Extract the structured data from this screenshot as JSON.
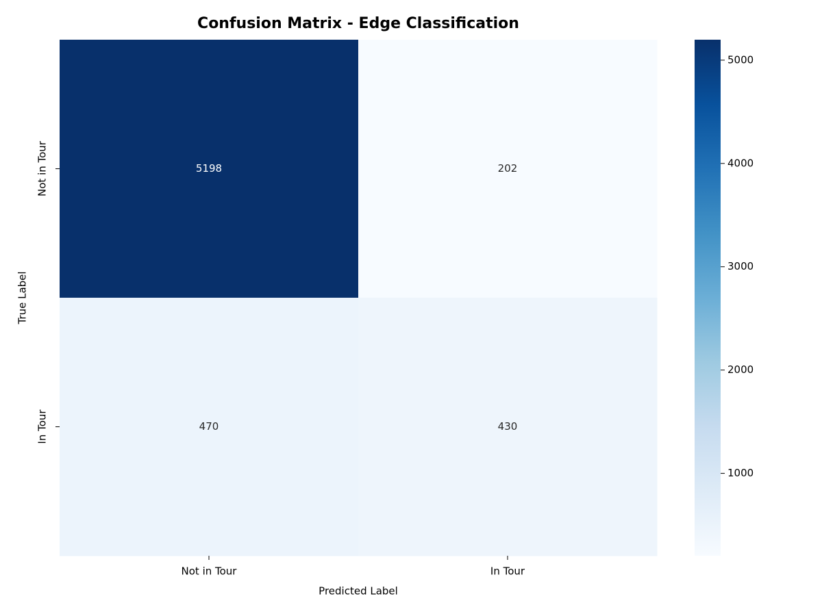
{
  "chart_data": {
    "type": "heatmap",
    "title": "Confusion Matrix - Edge Classification",
    "x_categories": [
      "Not in Tour",
      "In Tour"
    ],
    "y_categories": [
      "Not in Tour",
      "In Tour"
    ],
    "values": [
      [
        5198,
        202
      ],
      [
        470,
        430
      ]
    ],
    "xlabel": "Predicted Label",
    "ylabel": "True Label",
    "colormap": "Blues",
    "clim": [
      202,
      5198
    ],
    "cticks": [
      1000,
      2000,
      3000,
      4000,
      5000
    ]
  }
}
